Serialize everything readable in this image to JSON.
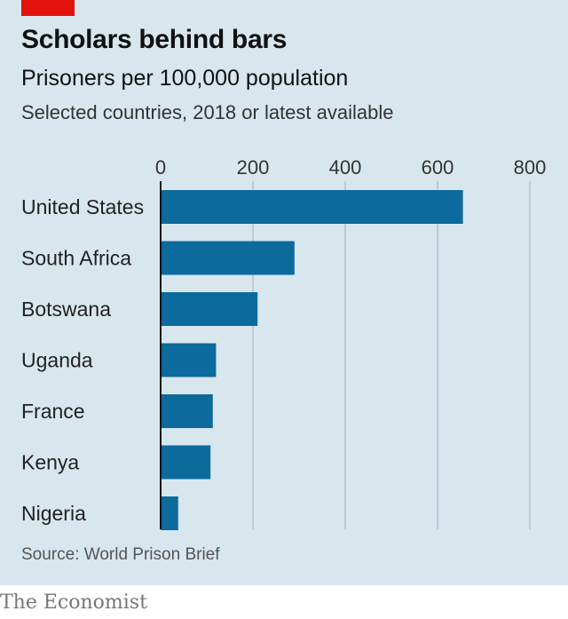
{
  "header": {
    "title": "Scholars behind bars",
    "subtitle": "Prisoners per 100,000 population",
    "note": "Selected countries, 2018 or latest available"
  },
  "footer": {
    "source": "Source: World Prison Brief",
    "brand": "The Economist"
  },
  "colors": {
    "background": "#d8e6ee",
    "bar": "#0d6a9c",
    "accent": "#e3120b",
    "grid": "#b3c2cb"
  },
  "chart_data": {
    "type": "bar",
    "orientation": "horizontal",
    "title": "Scholars behind bars",
    "subtitle": "Prisoners per 100,000 population",
    "categories": [
      "United States",
      "South Africa",
      "Botswana",
      "Uganda",
      "France",
      "Kenya",
      "Nigeria"
    ],
    "values": [
      655,
      290,
      210,
      120,
      113,
      108,
      38
    ],
    "xlim": [
      0,
      800
    ],
    "xticks": [
      0,
      200,
      400,
      600,
      800
    ],
    "xlabel": "",
    "ylabel": "",
    "grid": true,
    "axis_position": "top"
  }
}
